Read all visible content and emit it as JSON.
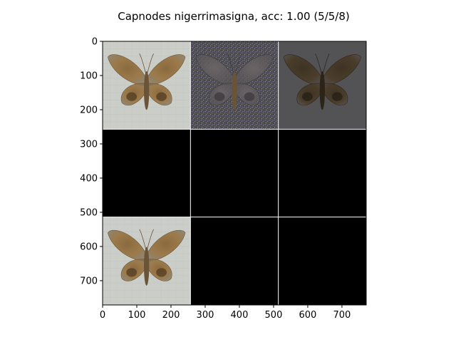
{
  "chart_data": {
    "type": "heatmap",
    "title": "Capnodes nigerrimasigna, acc: 1.00 (5/5/8)",
    "xlabel": "",
    "ylabel": "",
    "xlim": [
      0,
      771
    ],
    "ylim": [
      771,
      0
    ],
    "xticks": [
      0,
      100,
      200,
      300,
      400,
      500,
      600,
      700
    ],
    "yticks": [
      0,
      100,
      200,
      300,
      400,
      500,
      600,
      700
    ],
    "grid_separator_color": "#ffffff",
    "tiles": [
      {
        "row": 0,
        "col": 0,
        "content": "moth-original",
        "bg": "#cbcdc8"
      },
      {
        "row": 0,
        "col": 1,
        "content": "moth-noisy",
        "bg": "#4f4f52"
      },
      {
        "row": 0,
        "col": 2,
        "content": "moth-dark",
        "bg": "#535356"
      },
      {
        "row": 1,
        "col": 0,
        "content": "black",
        "bg": "#000000"
      },
      {
        "row": 1,
        "col": 1,
        "content": "black",
        "bg": "#000000"
      },
      {
        "row": 1,
        "col": 2,
        "content": "black",
        "bg": "#000000"
      },
      {
        "row": 2,
        "col": 0,
        "content": "moth-original",
        "bg": "#cbcdc8"
      },
      {
        "row": 2,
        "col": 1,
        "content": "black",
        "bg": "#000000"
      },
      {
        "row": 2,
        "col": 2,
        "content": "black",
        "bg": "#000000"
      }
    ]
  }
}
